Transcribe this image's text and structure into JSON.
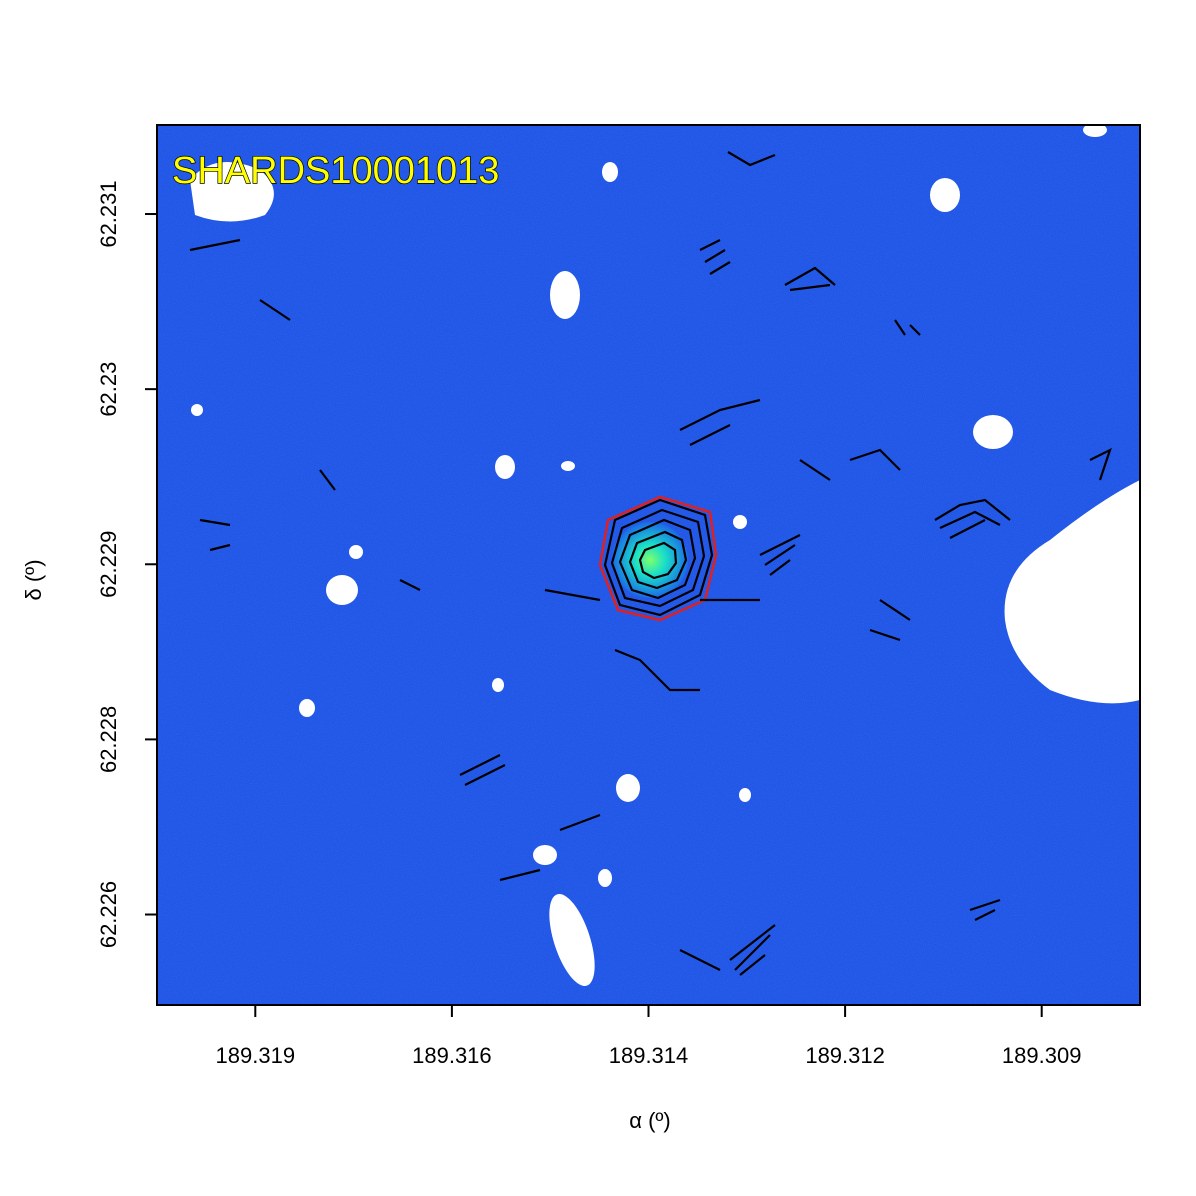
{
  "chart_data": {
    "type": "image",
    "title": "SHARDS10001013",
    "xlabel": "α (º)",
    "ylabel": "δ (º)",
    "xlim": [
      189.32,
      189.308
    ],
    "ylim": [
      62.22578,
      62.23181
    ],
    "xticks": [
      {
        "value": 189.3188,
        "label": "189.319"
      },
      {
        "value": 189.3164,
        "label": "189.316"
      },
      {
        "value": 189.314,
        "label": "189.314"
      },
      {
        "value": 189.3116,
        "label": "189.312"
      },
      {
        "value": 189.3092,
        "label": "189.309"
      }
    ],
    "yticks": [
      {
        "value": 62.2312,
        "label": "62.231"
      },
      {
        "value": 62.23,
        "label": "62.23"
      },
      {
        "value": 62.2288,
        "label": "62.229"
      },
      {
        "value": 62.2276,
        "label": "62.228"
      },
      {
        "value": 62.2264,
        "label": "62.226"
      }
    ]
  }
}
